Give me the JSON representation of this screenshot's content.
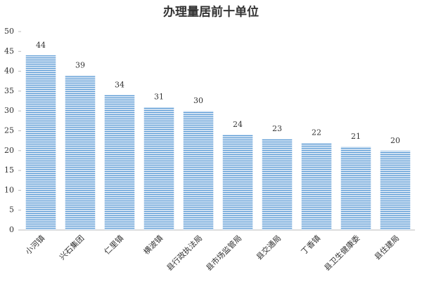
{
  "chart_data": {
    "type": "bar",
    "title": "办理量居前十单位",
    "categories": [
      "小河镇",
      "兴石集团",
      "仁里镇",
      "横波镇",
      "县行政执法局",
      "县市场监管局",
      "县交通局",
      "丁香镇",
      "县卫生健康委",
      "县住建局"
    ],
    "values": [
      44,
      39,
      34,
      31,
      30,
      24,
      23,
      22,
      21,
      20
    ],
    "color": "#5b9bd5",
    "ylim": [
      0,
      50
    ],
    "yticks": [
      0,
      5,
      10,
      15,
      20,
      25,
      30,
      35,
      40,
      45,
      50
    ]
  }
}
